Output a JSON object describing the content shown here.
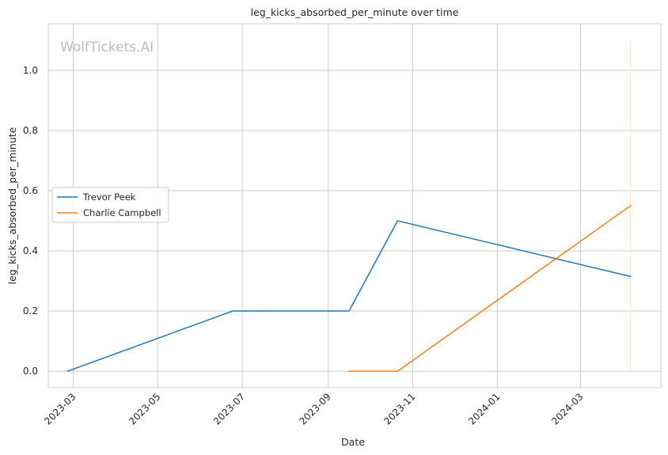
{
  "chart_data": {
    "type": "line",
    "title": "leg_kicks_absorbed_per_minute over time",
    "xlabel": "Date",
    "ylabel": "leg_kicks_absorbed_per_minute",
    "watermark": "WolfTickets.AI",
    "xlim": [
      "2023-02-11",
      "2024-04-28"
    ],
    "ylim": [
      -0.055,
      1.155
    ],
    "x_ticks": [
      {
        "date": "2023-03-01",
        "label": "2023-03"
      },
      {
        "date": "2023-05-01",
        "label": "2023-05"
      },
      {
        "date": "2023-07-01",
        "label": "2023-07"
      },
      {
        "date": "2023-09-01",
        "label": "2023-09"
      },
      {
        "date": "2023-11-01",
        "label": "2023-11"
      },
      {
        "date": "2024-01-01",
        "label": "2024-01"
      },
      {
        "date": "2024-03-01",
        "label": "2024-03"
      }
    ],
    "y_ticks": [
      {
        "value": 0.0,
        "label": "0.0"
      },
      {
        "value": 0.2,
        "label": "0.2"
      },
      {
        "value": 0.4,
        "label": "0.4"
      },
      {
        "value": 0.6,
        "label": "0.6"
      },
      {
        "value": 0.8,
        "label": "0.8"
      },
      {
        "value": 1.0,
        "label": "1.0"
      }
    ],
    "grid": true,
    "legend_position": "center-left",
    "series": [
      {
        "name": "Trevor Peek",
        "color": "#1f77b4",
        "points": [
          {
            "x": "2023-02-25",
            "y": 0.0
          },
          {
            "x": "2023-06-24",
            "y": 0.2
          },
          {
            "x": "2023-09-16",
            "y": 0.2
          },
          {
            "x": "2023-10-21",
            "y": 0.5
          },
          {
            "x": "2024-04-06",
            "y": 0.315
          }
        ]
      },
      {
        "name": "Charlie Campbell",
        "color": "#ff7f0e",
        "points": [
          {
            "x": "2023-09-16",
            "y": 0.0
          },
          {
            "x": "2023-10-21",
            "y": 0.0
          },
          {
            "x": "2024-04-06",
            "y": 0.55
          }
        ]
      }
    ],
    "annotations": [
      {
        "type": "vline",
        "x": "2024-04-06",
        "y_from": 0.0,
        "y_to": 1.1,
        "color": "#fbe6cf"
      }
    ]
  }
}
